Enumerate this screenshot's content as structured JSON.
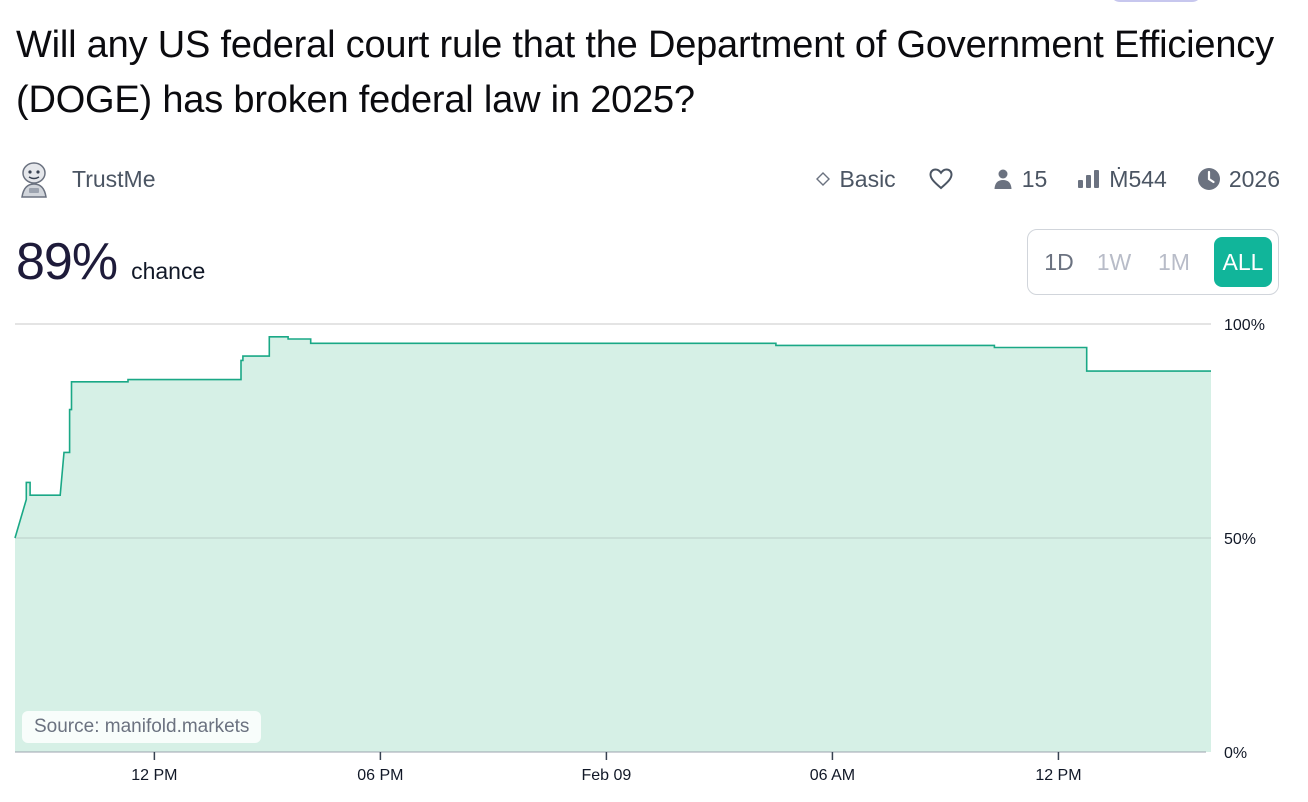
{
  "market": {
    "title": "Will any US federal court rule that the Department of Government Efficiency (DOGE) has broken federal law in 2025?",
    "creator": "TrustMe",
    "probability": "89%",
    "chance_label": "chance"
  },
  "stats": {
    "tier": "Basic",
    "traders": "15",
    "volume": "Ṁ544",
    "close_year": "2026"
  },
  "range": {
    "options": [
      "1D",
      "1W",
      "1M",
      "ALL"
    ],
    "selected": "ALL"
  },
  "source_label": "Source: manifold.markets",
  "colors": {
    "accent": "#11b59a",
    "line": "#1aa886",
    "fill": "#d6f0e6"
  },
  "icons": [
    "diamond-icon",
    "heart-icon",
    "person-icon",
    "bar-chart-icon",
    "clock-icon"
  ],
  "chart_data": {
    "type": "line",
    "step": true,
    "ylim": [
      0,
      100
    ],
    "y_ticks": [
      "0%",
      "50%",
      "100%"
    ],
    "x_ticks": [
      "12 PM",
      "06 PM",
      "Feb 09",
      "06 AM",
      "12 PM"
    ],
    "x_tick_hours": [
      12,
      18,
      24,
      30,
      36
    ],
    "series": [
      {
        "points_hours": [
          [
            8.3,
            50
          ],
          [
            8.6,
            59
          ],
          [
            8.6,
            63
          ],
          [
            8.7,
            63
          ],
          [
            8.7,
            60
          ],
          [
            9.5,
            60
          ],
          [
            9.6,
            70
          ],
          [
            9.75,
            70
          ],
          [
            9.75,
            80
          ],
          [
            9.8,
            80
          ],
          [
            9.8,
            86.5
          ],
          [
            11.3,
            86.5
          ],
          [
            11.3,
            87
          ],
          [
            14.3,
            87
          ],
          [
            14.3,
            91.5
          ],
          [
            14.35,
            91.5
          ],
          [
            14.35,
            92.5
          ],
          [
            15.05,
            92.5
          ],
          [
            15.05,
            97
          ],
          [
            15.55,
            97
          ],
          [
            15.55,
            96.5
          ],
          [
            16.15,
            96.5
          ],
          [
            16.15,
            95.5
          ],
          [
            28.5,
            95.5
          ],
          [
            28.5,
            95
          ],
          [
            34.3,
            95
          ],
          [
            34.3,
            94.5
          ],
          [
            36.75,
            94.5
          ],
          [
            36.75,
            89
          ],
          [
            40.05,
            89
          ]
        ]
      }
    ]
  }
}
